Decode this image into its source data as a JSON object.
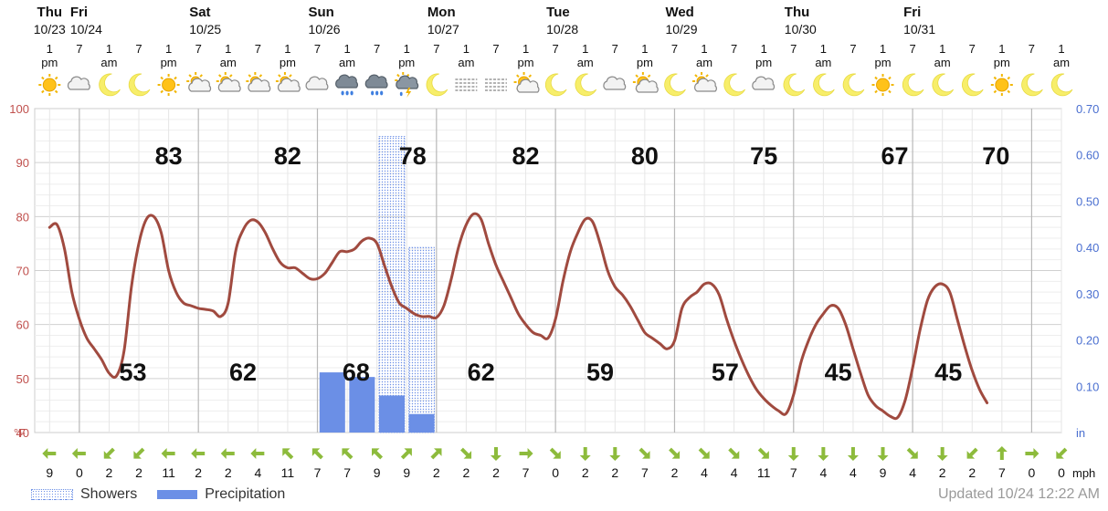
{
  "updated": "Updated 10/24 12:22 AM",
  "chart_data": {
    "type": "line",
    "legend": [
      "Showers",
      "Precipitation"
    ],
    "days": [
      {
        "day": "Thu",
        "date": "10/23"
      },
      {
        "day": "Fri",
        "date": "10/24"
      },
      {
        "day": "Sat",
        "date": "10/25"
      },
      {
        "day": "Sun",
        "date": "10/26"
      },
      {
        "day": "Mon",
        "date": "10/27"
      },
      {
        "day": "Tue",
        "date": "10/28"
      },
      {
        "day": "Wed",
        "date": "10/29"
      },
      {
        "day": "Thu",
        "date": "10/30"
      },
      {
        "day": "Fri",
        "date": "10/31"
      }
    ],
    "hour_labels": [
      [
        "1",
        "pm"
      ],
      [
        "7",
        ""
      ],
      [
        "1",
        "am"
      ],
      [
        "7",
        ""
      ],
      [
        "1",
        "pm"
      ],
      [
        "7",
        ""
      ],
      [
        "1",
        "am"
      ],
      [
        "7",
        ""
      ],
      [
        "1",
        "pm"
      ],
      [
        "7",
        ""
      ],
      [
        "1",
        "am"
      ],
      [
        "7",
        ""
      ],
      [
        "1",
        "pm"
      ],
      [
        "7",
        ""
      ],
      [
        "1",
        "am"
      ],
      [
        "7",
        ""
      ],
      [
        "1",
        "pm"
      ],
      [
        "7",
        ""
      ],
      [
        "1",
        "am"
      ],
      [
        "7",
        ""
      ],
      [
        "1",
        "pm"
      ],
      [
        "7",
        ""
      ],
      [
        "1",
        "am"
      ],
      [
        "7",
        ""
      ],
      [
        "1",
        "pm"
      ],
      [
        "7",
        ""
      ],
      [
        "1",
        "am"
      ],
      [
        "7",
        ""
      ],
      [
        "1",
        "pm"
      ],
      [
        "7",
        ""
      ],
      [
        "1",
        "am"
      ],
      [
        "7",
        ""
      ],
      [
        "1",
        "pm"
      ],
      [
        "7",
        ""
      ],
      [
        "1",
        "am"
      ]
    ],
    "weather_icons": [
      "sunny",
      "cloudy",
      "moon",
      "moon",
      "sunny",
      "partly-cloudy",
      "partly-cloudy",
      "partly-cloudy",
      "partly-cloudy",
      "cloudy",
      "rain-cloud",
      "rain-cloud",
      "thunderstorm",
      "moon",
      "fog",
      "fog",
      "partly-sunny",
      "moon",
      "moon",
      "cloudy",
      "partly-sunny",
      "moon",
      "partly-cloudy",
      "moon",
      "cloudy",
      "moon",
      "moon",
      "moon",
      "sunny",
      "moon",
      "moon",
      "moon",
      "sunny",
      "moon",
      "moon"
    ],
    "temperature_f": [
      78,
      78.5,
      74,
      66,
      61,
      57.5,
      55.5,
      53.5,
      51,
      50.5,
      55,
      67,
      75,
      79.5,
      80,
      77,
      70,
      66,
      64,
      63.5,
      63,
      62.8,
      62.5,
      61.5,
      64,
      73.5,
      77.5,
      79.3,
      79,
      77,
      74,
      71.5,
      70.5,
      70.5,
      69.5,
      68.5,
      68.5,
      69.5,
      71.5,
      73.5,
      73.5,
      74,
      75.5,
      76,
      75,
      71,
      67,
      64,
      63,
      62,
      61.5,
      61.5,
      61.3,
      63.5,
      68.5,
      74.5,
      78.5,
      80.5,
      79.5,
      75,
      71,
      68,
      65,
      62,
      60,
      58.5,
      58,
      57.5,
      61,
      68,
      73.5,
      77,
      79.5,
      79,
      75,
      70,
      67,
      65.5,
      63.5,
      61,
      58.5,
      57.5,
      56.5,
      55.5,
      57,
      63,
      65,
      66,
      67.5,
      67.5,
      65.5,
      61,
      57,
      53.5,
      50.5,
      48,
      46.3,
      45,
      44,
      43.5,
      47,
      53,
      57,
      60,
      62,
      63.5,
      63,
      60,
      55.5,
      51,
      47,
      45,
      44,
      43,
      42.8,
      46,
      52,
      59,
      64.5,
      67,
      67.5,
      66,
      61,
      56,
      51.5,
      48,
      45.5
    ],
    "temperature_interval_hours": 1.5,
    "highs": [
      83,
      82,
      78,
      82,
      80,
      75,
      67,
      70
    ],
    "lows": [
      53,
      62,
      68,
      62,
      59,
      57,
      45,
      45
    ],
    "precip_in": [
      0.13,
      0.12,
      0.08,
      0.04
    ],
    "showers_in": [
      0.64,
      0.4
    ],
    "wind_dirs": [
      "W",
      "W",
      "SW",
      "SW",
      "W",
      "W",
      "W",
      "W",
      "NW",
      "NW",
      "NW",
      "NW",
      "NE",
      "NE",
      "SE",
      "S",
      "E",
      "SE",
      "S",
      "S",
      "SE",
      "SE",
      "SE",
      "SE",
      "SE",
      "S",
      "S",
      "S",
      "S",
      "SE",
      "S",
      "SW",
      "N",
      "E",
      "SW"
    ],
    "wind_mph": [
      "9",
      "0",
      "2",
      "2",
      "11",
      "2",
      "2",
      "4",
      "11",
      "7",
      "7",
      "9",
      "9",
      "2",
      "2",
      "2",
      "7",
      "0",
      "2",
      "2",
      "7",
      "2",
      "4",
      "4",
      "11",
      "7",
      "4",
      "4",
      "9",
      "4",
      "2",
      "2",
      "7",
      "0",
      "0"
    ],
    "wind_unit": "mph",
    "y_left": {
      "min": 40,
      "max": 100,
      "ticks": [
        "100",
        "90",
        "80",
        "70",
        "60",
        "50",
        "40"
      ],
      "unit": "°F"
    },
    "y_right": {
      "min": 0,
      "max": 0.7,
      "ticks": [
        "0.70",
        "0.60",
        "0.50",
        "0.40",
        "0.30",
        "0.20",
        "0.10"
      ],
      "unit": "in"
    },
    "colors": {
      "temperature_line": "#a04a3f",
      "precipitation": "#6b8fe6",
      "showers": "#6b8fe6",
      "left_axis": "#c0504d",
      "right_axis": "#4a6fd0",
      "wind_arrow": "#8dbb3c",
      "grid": "#e2e2e2",
      "day_grid": "#b8b8b8"
    }
  }
}
